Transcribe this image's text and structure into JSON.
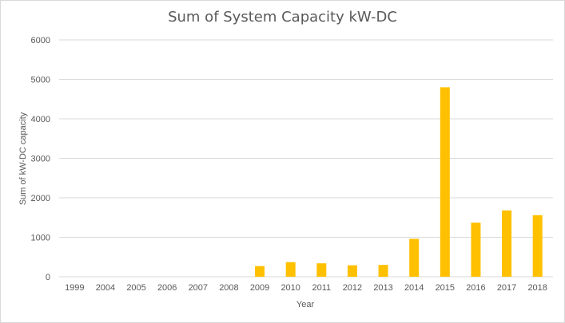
{
  "chart_data": {
    "type": "bar",
    "title": "Sum of System Capacity kW-DC",
    "xlabel": "Year",
    "ylabel": "Sum of kW-DC capacity",
    "categories": [
      "1999",
      "2004",
      "2005",
      "2006",
      "2007",
      "2008",
      "2009",
      "2010",
      "2011",
      "2012",
      "2013",
      "2014",
      "2015",
      "2016",
      "2017",
      "2018"
    ],
    "values": [
      0,
      0,
      0,
      0,
      0,
      0,
      270,
      370,
      340,
      290,
      300,
      960,
      4800,
      1370,
      1680,
      1560
    ],
    "ylim": [
      0,
      6000
    ],
    "yticks": [
      0,
      1000,
      2000,
      3000,
      4000,
      5000,
      6000
    ],
    "grid": true,
    "legend": "none",
    "bar_color": "#FFC000",
    "grid_color": "#d9d9d9"
  }
}
